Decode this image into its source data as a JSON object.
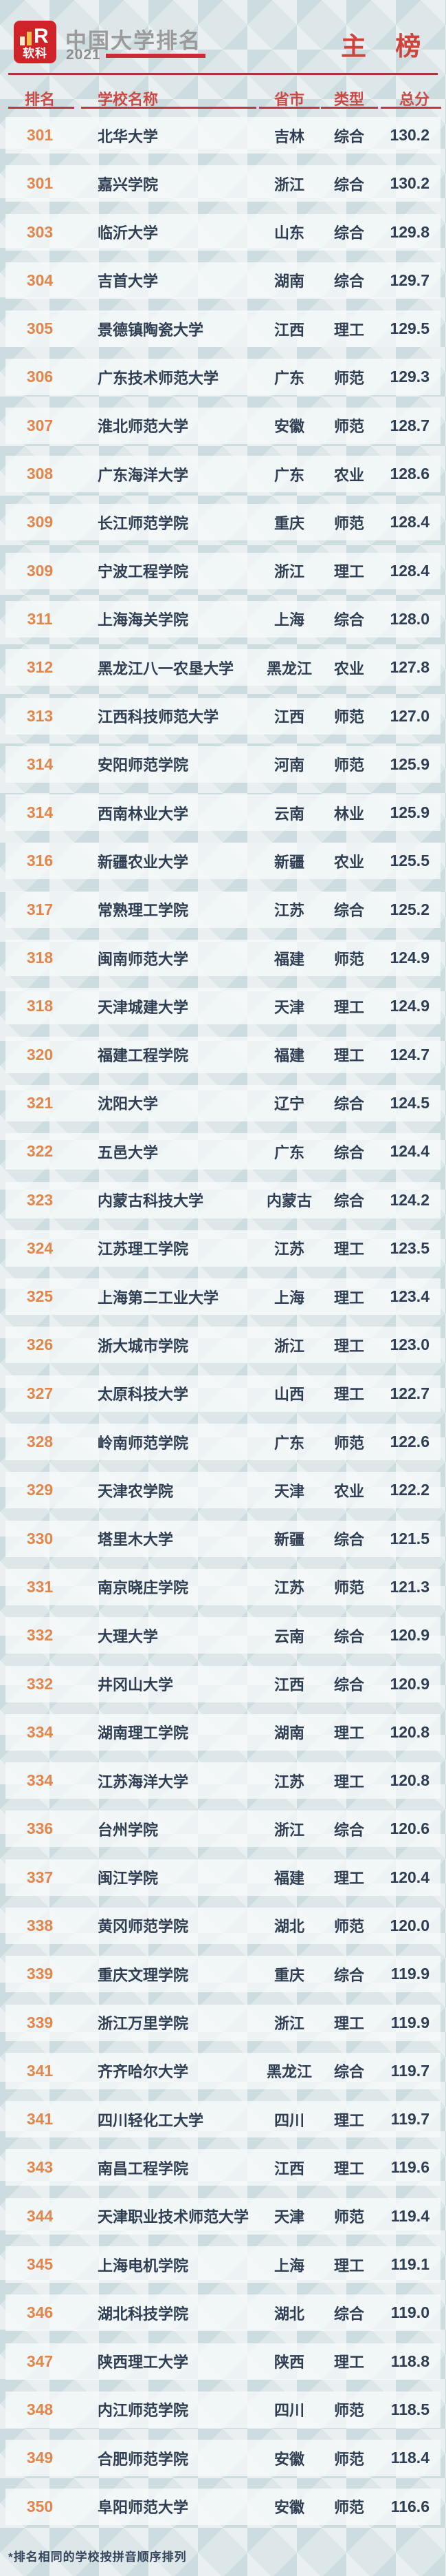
{
  "header": {
    "logo": {
      "brand": "软科",
      "mark": "R"
    },
    "title": "中国大学排名",
    "year": "2021",
    "badge": "主 榜"
  },
  "table": {
    "columns": [
      "排名",
      "学校名称",
      "省市",
      "类型",
      "总分"
    ],
    "rows": [
      {
        "rank": "301",
        "name": "北华大学",
        "province": "吉林",
        "type": "综合",
        "score": "130.2"
      },
      {
        "rank": "301",
        "name": "嘉兴学院",
        "province": "浙江",
        "type": "综合",
        "score": "130.2"
      },
      {
        "rank": "303",
        "name": "临沂大学",
        "province": "山东",
        "type": "综合",
        "score": "129.8"
      },
      {
        "rank": "304",
        "name": "吉首大学",
        "province": "湖南",
        "type": "综合",
        "score": "129.7"
      },
      {
        "rank": "305",
        "name": "景德镇陶瓷大学",
        "province": "江西",
        "type": "理工",
        "score": "129.5"
      },
      {
        "rank": "306",
        "name": "广东技术师范大学",
        "province": "广东",
        "type": "师范",
        "score": "129.3"
      },
      {
        "rank": "307",
        "name": "淮北师范大学",
        "province": "安徽",
        "type": "师范",
        "score": "128.7"
      },
      {
        "rank": "308",
        "name": "广东海洋大学",
        "province": "广东",
        "type": "农业",
        "score": "128.6"
      },
      {
        "rank": "309",
        "name": "长江师范学院",
        "province": "重庆",
        "type": "师范",
        "score": "128.4"
      },
      {
        "rank": "309",
        "name": "宁波工程学院",
        "province": "浙江",
        "type": "理工",
        "score": "128.4"
      },
      {
        "rank": "311",
        "name": "上海海关学院",
        "province": "上海",
        "type": "综合",
        "score": "128.0"
      },
      {
        "rank": "312",
        "name": "黑龙江八一农垦大学",
        "province": "黑龙江",
        "type": "农业",
        "score": "127.8"
      },
      {
        "rank": "313",
        "name": "江西科技师范大学",
        "province": "江西",
        "type": "师范",
        "score": "127.0"
      },
      {
        "rank": "314",
        "name": "安阳师范学院",
        "province": "河南",
        "type": "师范",
        "score": "125.9"
      },
      {
        "rank": "314",
        "name": "西南林业大学",
        "province": "云南",
        "type": "林业",
        "score": "125.9"
      },
      {
        "rank": "316",
        "name": "新疆农业大学",
        "province": "新疆",
        "type": "农业",
        "score": "125.5"
      },
      {
        "rank": "317",
        "name": "常熟理工学院",
        "province": "江苏",
        "type": "综合",
        "score": "125.2"
      },
      {
        "rank": "318",
        "name": "闽南师范大学",
        "province": "福建",
        "type": "师范",
        "score": "124.9"
      },
      {
        "rank": "318",
        "name": "天津城建大学",
        "province": "天津",
        "type": "理工",
        "score": "124.9"
      },
      {
        "rank": "320",
        "name": "福建工程学院",
        "province": "福建",
        "type": "理工",
        "score": "124.7"
      },
      {
        "rank": "321",
        "name": "沈阳大学",
        "province": "辽宁",
        "type": "综合",
        "score": "124.5"
      },
      {
        "rank": "322",
        "name": "五邑大学",
        "province": "广东",
        "type": "综合",
        "score": "124.4"
      },
      {
        "rank": "323",
        "name": "内蒙古科技大学",
        "province": "内蒙古",
        "type": "综合",
        "score": "124.2"
      },
      {
        "rank": "324",
        "name": "江苏理工学院",
        "province": "江苏",
        "type": "理工",
        "score": "123.5"
      },
      {
        "rank": "325",
        "name": "上海第二工业大学",
        "province": "上海",
        "type": "理工",
        "score": "123.4"
      },
      {
        "rank": "326",
        "name": "浙大城市学院",
        "province": "浙江",
        "type": "理工",
        "score": "123.0"
      },
      {
        "rank": "327",
        "name": "太原科技大学",
        "province": "山西",
        "type": "理工",
        "score": "122.7"
      },
      {
        "rank": "328",
        "name": "岭南师范学院",
        "province": "广东",
        "type": "师范",
        "score": "122.6"
      },
      {
        "rank": "329",
        "name": "天津农学院",
        "province": "天津",
        "type": "农业",
        "score": "122.2"
      },
      {
        "rank": "330",
        "name": "塔里木大学",
        "province": "新疆",
        "type": "综合",
        "score": "121.5"
      },
      {
        "rank": "331",
        "name": "南京晓庄学院",
        "province": "江苏",
        "type": "师范",
        "score": "121.3"
      },
      {
        "rank": "332",
        "name": "大理大学",
        "province": "云南",
        "type": "综合",
        "score": "120.9"
      },
      {
        "rank": "332",
        "name": "井冈山大学",
        "province": "江西",
        "type": "综合",
        "score": "120.9"
      },
      {
        "rank": "334",
        "name": "湖南理工学院",
        "province": "湖南",
        "type": "理工",
        "score": "120.8"
      },
      {
        "rank": "334",
        "name": "江苏海洋大学",
        "province": "江苏",
        "type": "理工",
        "score": "120.8"
      },
      {
        "rank": "336",
        "name": "台州学院",
        "province": "浙江",
        "type": "综合",
        "score": "120.6"
      },
      {
        "rank": "337",
        "name": "闽江学院",
        "province": "福建",
        "type": "理工",
        "score": "120.4"
      },
      {
        "rank": "338",
        "name": "黄冈师范学院",
        "province": "湖北",
        "type": "师范",
        "score": "120.0"
      },
      {
        "rank": "339",
        "name": "重庆文理学院",
        "province": "重庆",
        "type": "综合",
        "score": "119.9"
      },
      {
        "rank": "339",
        "name": "浙江万里学院",
        "province": "浙江",
        "type": "理工",
        "score": "119.9"
      },
      {
        "rank": "341",
        "name": "齐齐哈尔大学",
        "province": "黑龙江",
        "type": "综合",
        "score": "119.7"
      },
      {
        "rank": "341",
        "name": "四川轻化工大学",
        "province": "四川",
        "type": "理工",
        "score": "119.7"
      },
      {
        "rank": "343",
        "name": "南昌工程学院",
        "province": "江西",
        "type": "理工",
        "score": "119.6"
      },
      {
        "rank": "344",
        "name": "天津职业技术师范大学",
        "province": "天津",
        "type": "师范",
        "score": "119.4"
      },
      {
        "rank": "345",
        "name": "上海电机学院",
        "province": "上海",
        "type": "理工",
        "score": "119.1"
      },
      {
        "rank": "346",
        "name": "湖北科技学院",
        "province": "湖北",
        "type": "综合",
        "score": "119.0"
      },
      {
        "rank": "347",
        "name": "陕西理工大学",
        "province": "陕西",
        "type": "理工",
        "score": "118.8"
      },
      {
        "rank": "348",
        "name": "内江师范学院",
        "province": "四川",
        "type": "师范",
        "score": "118.5"
      },
      {
        "rank": "349",
        "name": "合肥师范学院",
        "province": "安徽",
        "type": "师范",
        "score": "118.4"
      },
      {
        "rank": "350",
        "name": "阜阳师范大学",
        "province": "安徽",
        "type": "师范",
        "score": "116.6"
      }
    ]
  },
  "footnote": "*排名相同的学校按拼音顺序排列",
  "colors": {
    "brand_red": "#ce2328",
    "badge_red": "#d0433d",
    "header_red": "#cb4a45",
    "divider_dark_red": "#a8343b",
    "year_line_red": "#cb2c33",
    "rank_orange": "#e2864b",
    "text_navy": "#2f3e52",
    "title_gray": "#9a9a9a",
    "background": "#dde6e8",
    "row_band": "#f2f6f6"
  }
}
